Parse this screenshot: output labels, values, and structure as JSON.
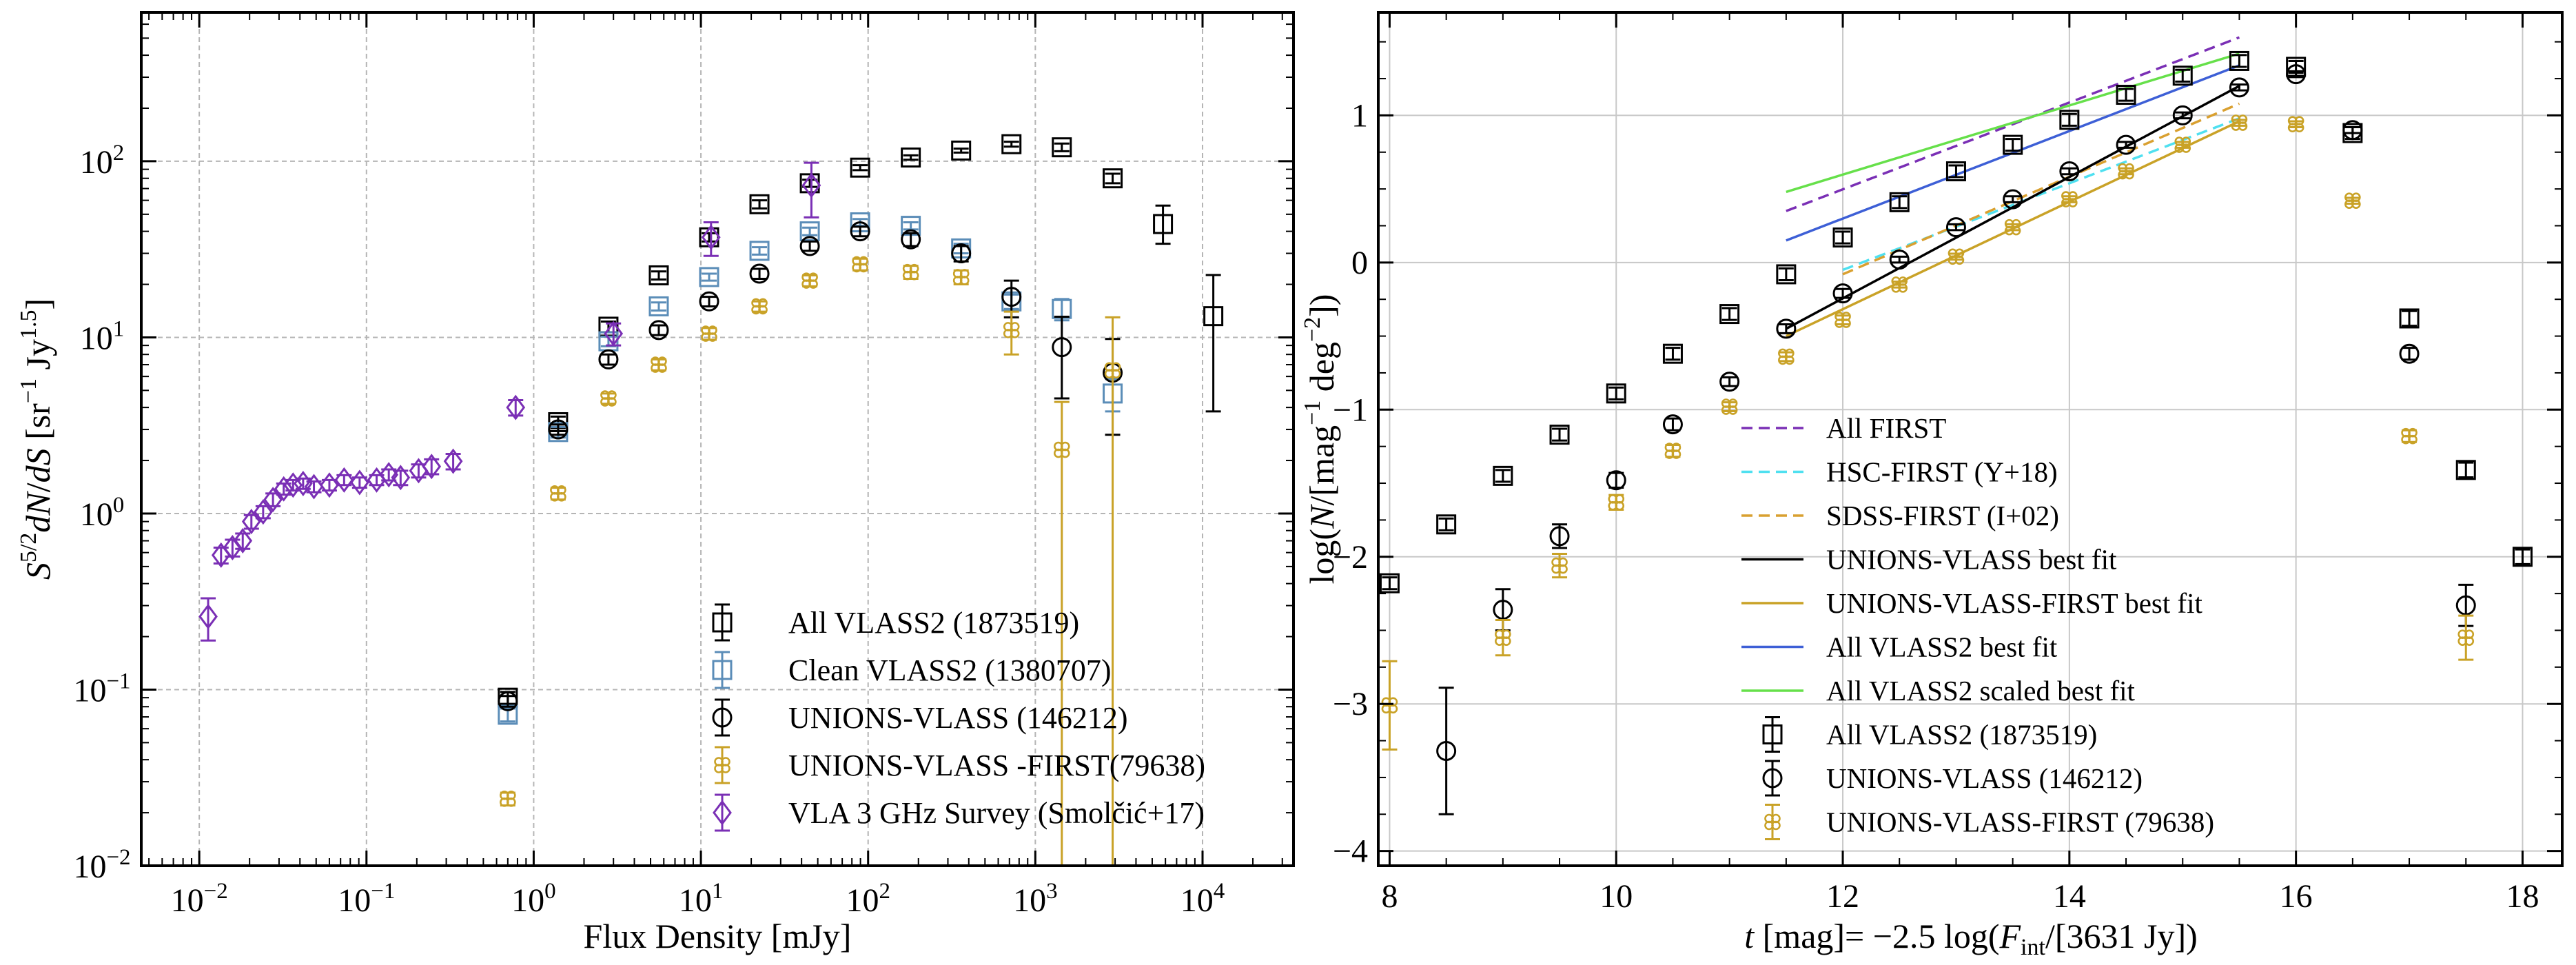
{
  "colors": {
    "all": "#000000",
    "clean": "#5b8db8",
    "unions": "#000000",
    "first": "#c9a227",
    "vla": "#7a2fb5",
    "all_first": "#7a2fb5",
    "hsc": "#4fe0f0",
    "sdss": "#d9a030",
    "unions_fit": "#000000",
    "uf_fit": "#c9a227",
    "all_fit": "#3d5fd6",
    "scaled_fit": "#66e04a"
  },
  "chart_data": [
    {
      "type": "scatter",
      "xlabel": "Flux Density [mJy]",
      "ylabel": "S^{5/2}dN/dS [sr^{-1} Jy^{1.5}]",
      "x_scale": "log",
      "y_scale": "log",
      "xlim": [
        0.0045,
        35000
      ],
      "ylim": [
        0.01,
        700
      ],
      "grid": true,
      "legend_position": "lower-right",
      "x_ticks": [
        "10^{-2}",
        "10^{-1}",
        "10^{0}",
        "10^{1}",
        "10^{2}",
        "10^{3}",
        "10^{4}"
      ],
      "y_ticks": [
        "10^{-2}",
        "10^{-1}",
        "10^{0}",
        "10^{1}",
        "10^{2}"
      ],
      "legend": [
        "All VLASS2 (1873519)",
        "Clean VLASS2 (1380707)",
        "UNIONS-VLASS (146212)",
        "UNIONS-VLASS -FIRST(79638)",
        "VLA 3 GHz Survey (Smolčić+17)"
      ],
      "series": [
        {
          "name": "All VLASS2 (1873519)",
          "marker": "square",
          "color_key": "all",
          "x": [
            0.7,
            1.4,
            2.8,
            5.6,
            11.2,
            22.4,
            44.8,
            89.6,
            180,
            360,
            720,
            1440,
            2900,
            5800,
            11600
          ],
          "y": [
            0.09,
            3.3,
            11.5,
            22.5,
            37,
            57,
            75,
            92,
            105,
            115,
            125,
            120,
            80,
            44,
            13.2
          ],
          "err_low": [
            0.007,
            0.25,
            0.8,
            1.2,
            2,
            3,
            3.5,
            3,
            3,
            3,
            4,
            6,
            5,
            10,
            9.4
          ],
          "err_high": [
            0.007,
            0.25,
            0.8,
            1.2,
            2,
            3,
            3.5,
            3,
            3,
            3,
            4,
            6,
            5,
            12,
            9.4
          ]
        },
        {
          "name": "Clean VLASS2 (1380707)",
          "marker": "square",
          "color_key": "clean",
          "x": [
            0.7,
            1.4,
            2.8,
            5.6,
            11.2,
            22.4,
            44.8,
            89.6,
            180,
            360,
            720,
            1440,
            2900
          ],
          "y": [
            0.072,
            2.9,
            9.5,
            15,
            22,
            31,
            40,
            45,
            43,
            32,
            16,
            14.5,
            4.8
          ],
          "err_low": [
            0.006,
            0.2,
            0.6,
            0.8,
            1,
            1.5,
            2,
            2,
            2,
            2,
            1.5,
            2,
            1
          ],
          "err_high": [
            0.006,
            0.2,
            0.6,
            0.8,
            1,
            1.5,
            2,
            2,
            2,
            2,
            1.5,
            2,
            1
          ]
        },
        {
          "name": "UNIONS-VLASS (146212)",
          "marker": "circle",
          "color_key": "unions",
          "x": [
            0.7,
            1.4,
            2.8,
            5.6,
            11.2,
            22.4,
            44.8,
            89.6,
            180,
            360,
            720,
            1440,
            2900
          ],
          "y": [
            0.086,
            3.0,
            7.5,
            11,
            16,
            23,
            33,
            40,
            36,
            30,
            17,
            8.8,
            6.3
          ],
          "err_low": [
            0.006,
            0.2,
            0.5,
            0.7,
            1,
            1.5,
            2,
            2.5,
            3,
            3,
            4,
            4.3,
            3.5
          ],
          "err_high": [
            0.006,
            0.2,
            0.5,
            0.7,
            1,
            1.5,
            2,
            2.5,
            3,
            3,
            4,
            4.3,
            3.5
          ]
        },
        {
          "name": "UNIONS-VLASS -FIRST(79638)",
          "marker": "flower",
          "color_key": "first",
          "x": [
            0.7,
            1.4,
            2.8,
            5.6,
            11.2,
            22.4,
            44.8,
            89.6,
            180,
            360,
            720,
            1440,
            2900
          ],
          "y": [
            0.024,
            1.3,
            4.5,
            7,
            10.5,
            15,
            21,
            26,
            23.5,
            22,
            11,
            2.3,
            6.5
          ],
          "err_low": [
            0.002,
            0.1,
            0.3,
            0.5,
            0.8,
            1,
            1.5,
            2,
            2,
            2,
            3,
            2.29,
            6.49
          ],
          "err_high": [
            0.002,
            0.1,
            0.3,
            0.5,
            0.8,
            1,
            1.5,
            2,
            2,
            2,
            3,
            2,
            6.5
          ]
        },
        {
          "name": "VLA 3 GHz Survey (Smolčić+17)",
          "marker": "diamond",
          "color_key": "vla",
          "x": [
            0.0113,
            0.0135,
            0.0158,
            0.0182,
            0.0205,
            0.0241,
            0.0276,
            0.032,
            0.0364,
            0.0418,
            0.0485,
            0.06,
            0.0735,
            0.091,
            0.115,
            0.136,
            0.16,
            0.205,
            0.245,
            0.33,
            0.78,
            3.0,
            11.5,
            45.8
          ],
          "y": [
            0.26,
            0.58,
            0.64,
            0.7,
            0.9,
            1.02,
            1.2,
            1.38,
            1.45,
            1.48,
            1.42,
            1.45,
            1.55,
            1.5,
            1.55,
            1.66,
            1.6,
            1.75,
            1.85,
            1.98,
            4.0,
            10.5,
            37,
            73
          ],
          "err_low": [
            0.07,
            0.06,
            0.07,
            0.07,
            0.08,
            0.08,
            0.1,
            0.1,
            0.1,
            0.1,
            0.1,
            0.1,
            0.1,
            0.1,
            0.1,
            0.12,
            0.15,
            0.15,
            0.18,
            0.2,
            0.4,
            1.5,
            8,
            25
          ],
          "err_high": [
            0.07,
            0.06,
            0.07,
            0.07,
            0.08,
            0.08,
            0.1,
            0.1,
            0.1,
            0.1,
            0.1,
            0.1,
            0.1,
            0.1,
            0.1,
            0.12,
            0.15,
            0.15,
            0.18,
            0.2,
            0.4,
            1.5,
            8,
            25
          ]
        }
      ]
    },
    {
      "type": "scatter",
      "xlabel": "t [mag]= −2.5 log(F_int/[3631 Jy])",
      "ylabel": "log(N/[mag^{-1} deg^{-2}])",
      "xlim": [
        7.9,
        18.35
      ],
      "ylim": [
        -4.1,
        1.7
      ],
      "grid": true,
      "legend_position": "lower-center",
      "x_ticks": [
        8,
        10,
        12,
        14,
        16,
        18
      ],
      "y_ticks": [
        -4,
        -3,
        -2,
        -1,
        0,
        1
      ],
      "legend": [
        "All FIRST",
        "HSC-FIRST (Y+18)",
        "SDSS-FIRST (I+02)",
        "UNIONS-VLASS best fit",
        "UNIONS-VLASS-FIRST best fit",
        "All VLASS2 best fit",
        "All VLASS2 scaled best fit",
        "All VLASS2 (1873519)",
        "UNIONS-VLASS (146212)",
        "UNIONS-VLASS-FIRST (79638)"
      ],
      "lines": [
        {
          "name": "All FIRST",
          "style": "dashed",
          "color_key": "all_first",
          "x": [
            11.5,
            15.5
          ],
          "y": [
            0.35,
            1.53
          ]
        },
        {
          "name": "HSC-FIRST (Y+18)",
          "style": "dashed",
          "color_key": "hsc",
          "x": [
            12,
            15.5
          ],
          "y": [
            -0.05,
            0.98
          ]
        },
        {
          "name": "SDSS-FIRST (I+02)",
          "style": "dashed",
          "color_key": "sdss",
          "x": [
            12,
            15.5
          ],
          "y": [
            -0.08,
            1.08
          ]
        },
        {
          "name": "UNIONS-VLASS best fit",
          "style": "solid",
          "color_key": "unions_fit",
          "x": [
            11.5,
            15.5
          ],
          "y": [
            -0.45,
            1.2
          ]
        },
        {
          "name": "UNIONS-VLASS-FIRST best fit",
          "style": "solid",
          "color_key": "uf_fit",
          "x": [
            11.5,
            15.5
          ],
          "y": [
            -0.5,
            0.96
          ]
        },
        {
          "name": "All VLASS2 best fit",
          "style": "solid",
          "color_key": "all_fit",
          "x": [
            11.5,
            15.5
          ],
          "y": [
            0.15,
            1.34
          ]
        },
        {
          "name": "All VLASS2 scaled best fit",
          "style": "solid",
          "color_key": "scaled_fit",
          "x": [
            11.5,
            15.5
          ],
          "y": [
            0.48,
            1.42
          ]
        }
      ],
      "series": [
        {
          "name": "All VLASS2 (1873519)",
          "marker": "square",
          "color_key": "all",
          "x": [
            8,
            8.5,
            9,
            9.5,
            10,
            10.5,
            11,
            11.5,
            12,
            12.5,
            13,
            13.5,
            14,
            14.5,
            15,
            15.5,
            16,
            16.5,
            17,
            17.5,
            18
          ],
          "y": [
            -2.18,
            -1.78,
            -1.45,
            -1.17,
            -0.89,
            -0.62,
            -0.35,
            -0.08,
            0.17,
            0.41,
            0.62,
            0.8,
            0.97,
            1.14,
            1.27,
            1.37,
            1.33,
            0.88,
            -0.38,
            -1.41,
            -2.0
          ],
          "err_low": [
            0.04,
            0.04,
            0.04,
            0.04,
            0.04,
            0.04,
            0.04,
            0.04,
            0.04,
            0.04,
            0.04,
            0.04,
            0.04,
            0.04,
            0.04,
            0.04,
            0.04,
            0.04,
            0.05,
            0.05,
            0.05
          ],
          "err_high": [
            0.04,
            0.04,
            0.04,
            0.04,
            0.04,
            0.04,
            0.04,
            0.04,
            0.04,
            0.04,
            0.04,
            0.04,
            0.04,
            0.04,
            0.04,
            0.04,
            0.04,
            0.04,
            0.05,
            0.05,
            0.05
          ]
        },
        {
          "name": "UNIONS-VLASS (146212)",
          "marker": "circle",
          "color_key": "unions",
          "x": [
            8.5,
            9,
            9.5,
            10,
            10.5,
            11,
            11.5,
            12,
            12.5,
            13,
            13.5,
            14,
            14.5,
            15,
            15.5,
            16,
            16.5,
            17,
            17.5
          ],
          "y": [
            -3.32,
            -2.36,
            -1.86,
            -1.48,
            -1.1,
            -0.81,
            -0.45,
            -0.21,
            0.02,
            0.24,
            0.43,
            0.62,
            0.8,
            1.0,
            1.19,
            1.28,
            0.9,
            -0.62,
            -2.33
          ],
          "err_low": [
            0.43,
            0.14,
            0.08,
            0.05,
            0.04,
            0.03,
            0.03,
            0.03,
            0.02,
            0.02,
            0.02,
            0.02,
            0.02,
            0.02,
            0.02,
            0.02,
            0.02,
            0.04,
            0.14
          ],
          "err_high": [
            0.43,
            0.14,
            0.08,
            0.05,
            0.04,
            0.03,
            0.03,
            0.03,
            0.02,
            0.02,
            0.02,
            0.02,
            0.02,
            0.02,
            0.02,
            0.02,
            0.02,
            0.04,
            0.14
          ]
        },
        {
          "name": "UNIONS-VLASS-FIRST (79638)",
          "marker": "flower",
          "color_key": "first",
          "x": [
            8,
            9,
            9.5,
            10,
            10.5,
            11,
            11.5,
            12,
            12.5,
            13,
            13.5,
            14,
            14.5,
            15,
            15.5,
            16,
            16.5,
            17,
            17.5
          ],
          "y": [
            -3.01,
            -2.55,
            -2.06,
            -1.63,
            -1.28,
            -0.98,
            -0.64,
            -0.39,
            -0.15,
            0.04,
            0.24,
            0.43,
            0.62,
            0.8,
            0.95,
            0.94,
            0.42,
            -1.18,
            -2.55
          ],
          "err_low": [
            0.3,
            0.12,
            0.08,
            0.05,
            0.04,
            0.03,
            0.03,
            0.03,
            0.02,
            0.02,
            0.02,
            0.02,
            0.02,
            0.02,
            0.02,
            0.02,
            0.02,
            0.04,
            0.15
          ],
          "err_high": [
            0.3,
            0.12,
            0.08,
            0.05,
            0.04,
            0.03,
            0.03,
            0.03,
            0.02,
            0.02,
            0.02,
            0.02,
            0.02,
            0.02,
            0.02,
            0.02,
            0.02,
            0.04,
            0.15
          ]
        }
      ]
    }
  ]
}
